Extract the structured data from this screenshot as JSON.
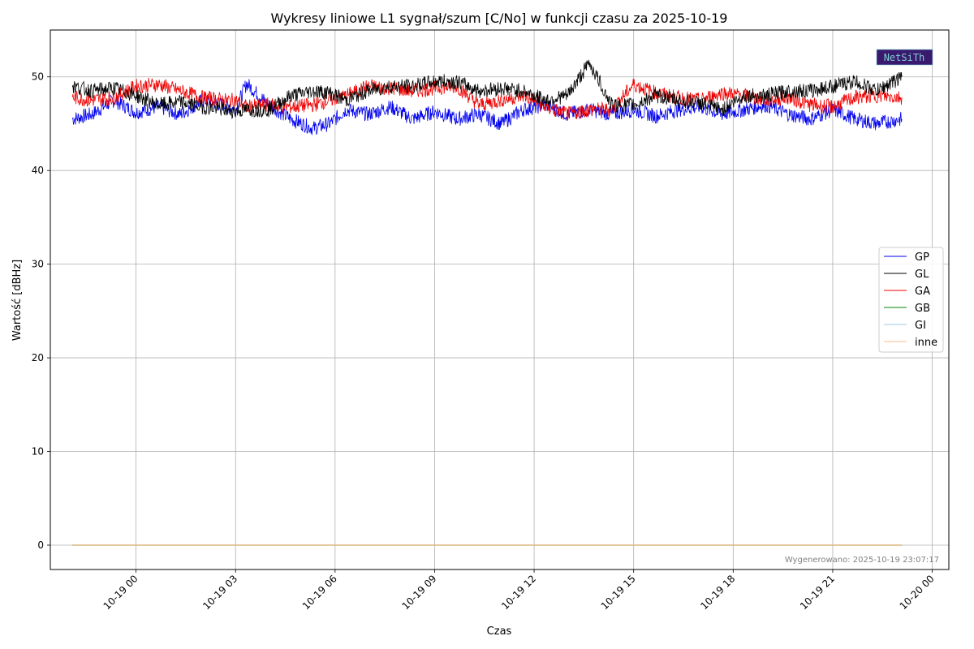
{
  "chart_data": {
    "type": "line",
    "title": "Wykresy liniowe L1 sygnał/szum [C/No] w funkcji czasu za 2025-10-19",
    "xlabel": "Czas",
    "ylabel": "Wartość [dBHz]",
    "ylim": [
      -2.6,
      55
    ],
    "yticks": [
      0,
      10,
      20,
      30,
      40,
      50
    ],
    "xlim": [
      "2025-10-18T21:25",
      "2025-10-20T00:30"
    ],
    "xticks": [
      {
        "t": "2025-10-19T00:00",
        "label": "10-19 00"
      },
      {
        "t": "2025-10-19T03:00",
        "label": "10-19 03"
      },
      {
        "t": "2025-10-19T06:00",
        "label": "10-19 06"
      },
      {
        "t": "2025-10-19T09:00",
        "label": "10-19 09"
      },
      {
        "t": "2025-10-19T12:00",
        "label": "10-19 12"
      },
      {
        "t": "2025-10-19T15:00",
        "label": "10-19 15"
      },
      {
        "t": "2025-10-19T18:00",
        "label": "10-19 18"
      },
      {
        "t": "2025-10-19T21:00",
        "label": "10-19 21"
      },
      {
        "t": "2025-10-20T00:00",
        "label": "10-20 00"
      }
    ],
    "grid": true,
    "legend_position": "center-right",
    "series": [
      {
        "name": "GP",
        "color": "#0000ee",
        "x": [
          "2025-10-18T22:05",
          "2025-10-18T22:40",
          "2025-10-18T23:20",
          "2025-10-19T00:00",
          "2025-10-19T00:40",
          "2025-10-19T01:20",
          "2025-10-19T02:00",
          "2025-10-19T02:40",
          "2025-10-19T03:00",
          "2025-10-19T03:20",
          "2025-10-19T04:00",
          "2025-10-19T04:40",
          "2025-10-19T05:20",
          "2025-10-19T05:50",
          "2025-10-19T06:20",
          "2025-10-19T07:00",
          "2025-10-19T07:40",
          "2025-10-19T08:20",
          "2025-10-19T09:00",
          "2025-10-19T09:40",
          "2025-10-19T10:20",
          "2025-10-19T11:00",
          "2025-10-19T11:40",
          "2025-10-19T12:20",
          "2025-10-19T13:00",
          "2025-10-19T13:40",
          "2025-10-19T14:20",
          "2025-10-19T15:00",
          "2025-10-19T15:40",
          "2025-10-19T16:20",
          "2025-10-19T17:00",
          "2025-10-19T17:40",
          "2025-10-19T18:20",
          "2025-10-19T19:00",
          "2025-10-19T19:40",
          "2025-10-19T20:20",
          "2025-10-19T21:00",
          "2025-10-19T21:40",
          "2025-10-19T22:20",
          "2025-10-19T23:05"
        ],
        "values": [
          45.5,
          46.0,
          47.5,
          46.2,
          46.8,
          46.0,
          47.5,
          47.0,
          46.5,
          49.3,
          47.0,
          45.5,
          44.5,
          45.0,
          46.5,
          46.0,
          46.8,
          45.5,
          46.3,
          45.5,
          46.0,
          45.0,
          46.5,
          47.0,
          46.0,
          46.5,
          46.0,
          46.5,
          45.8,
          46.5,
          46.8,
          46.0,
          46.5,
          47.0,
          46.0,
          45.5,
          46.5,
          45.5,
          45.0,
          45.5
        ]
      },
      {
        "name": "GL",
        "color": "#000000",
        "x": [
          "2025-10-18T22:05",
          "2025-10-18T22:40",
          "2025-10-18T23:20",
          "2025-10-19T00:00",
          "2025-10-19T00:40",
          "2025-10-19T01:20",
          "2025-10-19T02:00",
          "2025-10-19T02:40",
          "2025-10-19T03:00",
          "2025-10-19T03:20",
          "2025-10-19T04:00",
          "2025-10-19T04:40",
          "2025-10-19T05:20",
          "2025-10-19T05:50",
          "2025-10-19T06:20",
          "2025-10-19T07:00",
          "2025-10-19T07:40",
          "2025-10-19T08:20",
          "2025-10-19T09:00",
          "2025-10-19T09:40",
          "2025-10-19T10:20",
          "2025-10-19T11:00",
          "2025-10-19T11:40",
          "2025-10-19T12:20",
          "2025-10-19T13:00",
          "2025-10-19T13:40",
          "2025-10-19T14:20",
          "2025-10-19T15:00",
          "2025-10-19T15:40",
          "2025-10-19T16:20",
          "2025-10-19T17:00",
          "2025-10-19T17:40",
          "2025-10-19T18:20",
          "2025-10-19T19:00",
          "2025-10-19T19:40",
          "2025-10-19T20:20",
          "2025-10-19T21:00",
          "2025-10-19T21:40",
          "2025-10-19T22:20",
          "2025-10-19T23:05"
        ],
        "values": [
          49.0,
          48.5,
          48.8,
          48.0,
          47.0,
          47.3,
          46.8,
          46.5,
          46.3,
          46.5,
          46.5,
          48.0,
          48.5,
          48.3,
          47.5,
          48.5,
          49.0,
          49.0,
          49.5,
          49.5,
          48.5,
          48.8,
          48.5,
          47.5,
          48.0,
          51.5,
          47.0,
          47.0,
          48.0,
          47.5,
          47.2,
          46.5,
          48.0,
          48.0,
          48.5,
          48.5,
          49.0,
          49.5,
          48.5,
          50.0
        ]
      },
      {
        "name": "GA",
        "color": "#ee0000",
        "x": [
          "2025-10-18T22:05",
          "2025-10-18T22:40",
          "2025-10-18T23:20",
          "2025-10-19T00:00",
          "2025-10-19T00:40",
          "2025-10-19T01:20",
          "2025-10-19T02:00",
          "2025-10-19T02:40",
          "2025-10-19T03:00",
          "2025-10-19T03:20",
          "2025-10-19T04:00",
          "2025-10-19T04:40",
          "2025-10-19T05:20",
          "2025-10-19T05:50",
          "2025-10-19T06:20",
          "2025-10-19T07:00",
          "2025-10-19T07:40",
          "2025-10-19T08:20",
          "2025-10-19T09:00",
          "2025-10-19T09:40",
          "2025-10-19T10:20",
          "2025-10-19T11:00",
          "2025-10-19T11:40",
          "2025-10-19T12:20",
          "2025-10-19T13:00",
          "2025-10-19T13:40",
          "2025-10-19T14:20",
          "2025-10-19T15:00",
          "2025-10-19T15:40",
          "2025-10-19T16:20",
          "2025-10-19T17:00",
          "2025-10-19T17:40",
          "2025-10-19T18:20",
          "2025-10-19T19:00",
          "2025-10-19T19:40",
          "2025-10-19T20:20",
          "2025-10-19T21:00",
          "2025-10-19T21:40",
          "2025-10-19T22:20",
          "2025-10-19T23:05"
        ],
        "values": [
          47.8,
          47.5,
          47.8,
          49.0,
          49.2,
          48.5,
          47.8,
          47.5,
          47.5,
          46.8,
          47.0,
          46.8,
          47.0,
          47.5,
          48.0,
          49.0,
          48.8,
          48.5,
          48.8,
          49.0,
          47.0,
          47.5,
          48.0,
          46.8,
          46.0,
          46.5,
          46.5,
          49.2,
          48.3,
          47.8,
          47.5,
          48.3,
          48.0,
          47.5,
          47.8,
          47.0,
          46.8,
          47.8,
          48.0,
          47.8
        ]
      },
      {
        "name": "GB",
        "color": "#008800",
        "x": [
          "2025-10-18T22:05",
          "2025-10-19T23:05"
        ],
        "values": [
          0,
          0
        ]
      },
      {
        "name": "GI",
        "color": "#9ecae1",
        "x": [
          "2025-10-18T22:05",
          "2025-10-19T23:05"
        ],
        "values": [
          0,
          0
        ]
      },
      {
        "name": "inne",
        "color": "#fdbb84",
        "x": [
          "2025-10-18T22:05",
          "2025-10-19T23:05"
        ],
        "values": [
          0,
          0
        ]
      }
    ]
  },
  "footer": {
    "generated_text": "Wygenerowano: 2025-10-19 23:07:17"
  },
  "logo": {
    "text": "NetSiTh",
    "colors": {
      "bg": "#3a1a6e",
      "fg": "#7fd0d0"
    }
  }
}
